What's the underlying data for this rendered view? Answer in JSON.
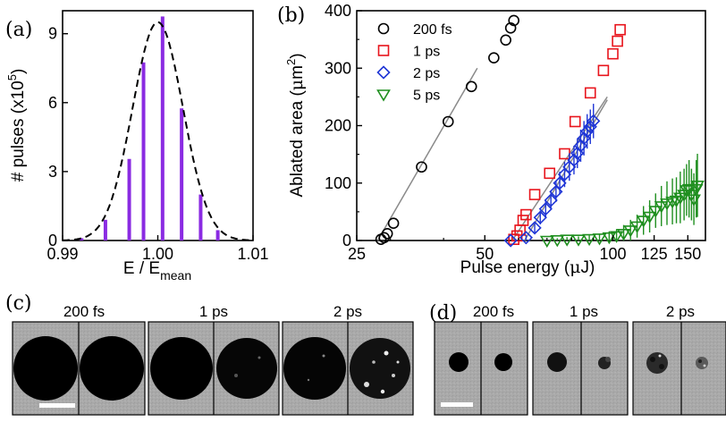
{
  "chart_data": [
    {
      "panel": "(a)",
      "type": "bar",
      "xlabel": "E / E",
      "xlabel_sub": "mean",
      "ylabel": "# pulses (x10",
      "ylabel_sup": "5",
      "ylabel_end": ")",
      "xlim": [
        0.99,
        1.01
      ],
      "ylim": [
        0,
        10
      ],
      "xticks": [
        {
          "v": 0.99,
          "label": "0.99"
        },
        {
          "v": 1.0,
          "label": "1.00"
        },
        {
          "v": 1.01,
          "label": "1.01"
        }
      ],
      "yticks": [
        {
          "v": 0,
          "label": "0"
        },
        {
          "v": 3,
          "label": "3"
        },
        {
          "v": 6,
          "label": "6"
        },
        {
          "v": 9,
          "label": "9"
        }
      ],
      "bar_color": "#8a2be2",
      "bars": [
        {
          "x": 0.992,
          "y": 0.1
        },
        {
          "x": 0.9945,
          "y": 0.9
        },
        {
          "x": 0.997,
          "y": 3.55
        },
        {
          "x": 0.9985,
          "y": 7.75
        },
        {
          "x": 1.0005,
          "y": 9.75
        },
        {
          "x": 1.0025,
          "y": 5.75
        },
        {
          "x": 1.0045,
          "y": 2.0
        },
        {
          "x": 1.0063,
          "y": 0.45
        }
      ],
      "fit_curve": {
        "style": "dashed",
        "color": "#000000",
        "peak": 9.5,
        "mean": 1.0,
        "sigma": 0.00265
      }
    },
    {
      "panel": "(b)",
      "type": "scatter",
      "xscale": "log",
      "xlabel": "Pulse energy (",
      "xlabel_greek": "μ",
      "xlabel_end": "J)",
      "ylabel": "Ablated area (",
      "ylabel_greek": "μ",
      "ylabel_mid": "m",
      "ylabel_sup": "2",
      "ylabel_end": ")",
      "xlim": [
        25,
        165
      ],
      "ylim": [
        0,
        400
      ],
      "xticks": [
        {
          "v": 25,
          "label": "25"
        },
        {
          "v": 50,
          "label": "50"
        },
        {
          "v": 100,
          "label": "100"
        },
        {
          "v": 125,
          "label": "125"
        },
        {
          "v": 150,
          "label": "150"
        }
      ],
      "yticks": [
        {
          "v": 0,
          "label": "0"
        },
        {
          "v": 100,
          "label": "100"
        },
        {
          "v": 200,
          "label": "200"
        },
        {
          "v": 300,
          "label": "300"
        },
        {
          "v": 400,
          "label": "400"
        }
      ],
      "legend_position": "top-left",
      "series": [
        {
          "name": "200 fs",
          "marker": "circle",
          "color": "#000000",
          "points": [
            [
              28.5,
              2
            ],
            [
              29,
              5
            ],
            [
              29.5,
              12
            ],
            [
              30.5,
              30
            ],
            [
              35.5,
              128
            ],
            [
              41,
              207
            ],
            [
              46.5,
              268
            ],
            [
              52.5,
              318
            ],
            [
              56,
              349
            ],
            [
              57.5,
              370
            ],
            [
              58.5,
              383
            ]
          ],
          "errors": [
            0,
            0,
            0,
            0,
            0,
            0,
            0,
            0,
            0,
            0,
            0
          ],
          "fit": [
            [
              28,
              0
            ],
            [
              48,
              300
            ]
          ]
        },
        {
          "name": "1 ps",
          "marker": "square",
          "color": "#e8141c",
          "points": [
            [
              58.5,
              2
            ],
            [
              59.5,
              8
            ],
            [
              60.5,
              18
            ],
            [
              61.5,
              35
            ],
            [
              62.5,
              45
            ],
            [
              65.5,
              80
            ],
            [
              71,
              117
            ],
            [
              77,
              151
            ],
            [
              81.5,
              207
            ],
            [
              88.5,
              257
            ],
            [
              95,
              296
            ],
            [
              100,
              325
            ],
            [
              102.5,
              347
            ],
            [
              104,
              367
            ]
          ],
          "errors": [
            0,
            0,
            0,
            0,
            0,
            0,
            0,
            0,
            0,
            0,
            0,
            0,
            0,
            0
          ],
          "fit": [
            [
              58,
              0
            ],
            [
              97,
              250
            ]
          ]
        },
        {
          "name": "2 ps",
          "marker": "diamond",
          "color": "#1f36d6",
          "points": [
            [
              57.5,
              0
            ],
            [
              62.5,
              5
            ],
            [
              65.5,
              22
            ],
            [
              67.5,
              40
            ],
            [
              69.5,
              55
            ],
            [
              71.5,
              70
            ],
            [
              73.5,
              85
            ],
            [
              75,
              100
            ],
            [
              77,
              115
            ],
            [
              79,
              128
            ],
            [
              81,
              140
            ],
            [
              82.5,
              152
            ],
            [
              84,
              165
            ],
            [
              85.5,
              178
            ],
            [
              87,
              190
            ],
            [
              88.5,
              198
            ],
            [
              90,
              208
            ]
          ],
          "errors": [
            0,
            5,
            8,
            12,
            14,
            16,
            18,
            20,
            22,
            24,
            25,
            26,
            28,
            30,
            30,
            30,
            30
          ],
          "fit": [
            [
              62,
              0
            ],
            [
              97,
              245
            ]
          ]
        },
        {
          "name": "5 ps",
          "marker": "triangle-down",
          "color": "#1f8f1f",
          "points": [
            [
              70,
              0
            ],
            [
              74,
              1
            ],
            [
              78,
              2
            ],
            [
              83,
              2
            ],
            [
              88,
              3
            ],
            [
              93,
              4
            ],
            [
              98,
              6
            ],
            [
              102,
              8
            ],
            [
              106,
              12
            ],
            [
              110,
              18
            ],
            [
              114,
              25
            ],
            [
              118,
              35
            ],
            [
              122,
              42
            ],
            [
              126,
              52
            ],
            [
              130,
              60
            ],
            [
              134,
              65
            ],
            [
              138,
              68
            ],
            [
              141,
              70
            ],
            [
              144,
              75
            ],
            [
              147,
              80
            ],
            [
              149,
              88
            ],
            [
              151,
              90
            ],
            [
              153,
              80
            ],
            [
              155,
              72
            ],
            [
              157,
              90
            ],
            [
              158,
              96
            ]
          ],
          "errors": [
            2,
            3,
            4,
            5,
            6,
            8,
            10,
            12,
            15,
            18,
            20,
            25,
            28,
            30,
            35,
            38,
            40,
            40,
            45,
            45,
            45,
            50,
            45,
            45,
            50,
            55
          ]
        }
      ]
    }
  ],
  "micrographs": {
    "c": {
      "label": "(c)",
      "captions": [
        "200 fs",
        "1 ps",
        "2 ps"
      ]
    },
    "d": {
      "label": "(d)",
      "captions": [
        "200 fs",
        "1 ps",
        "2 ps"
      ]
    }
  },
  "panel_labels": {
    "a": "(a)",
    "b": "(b)"
  }
}
